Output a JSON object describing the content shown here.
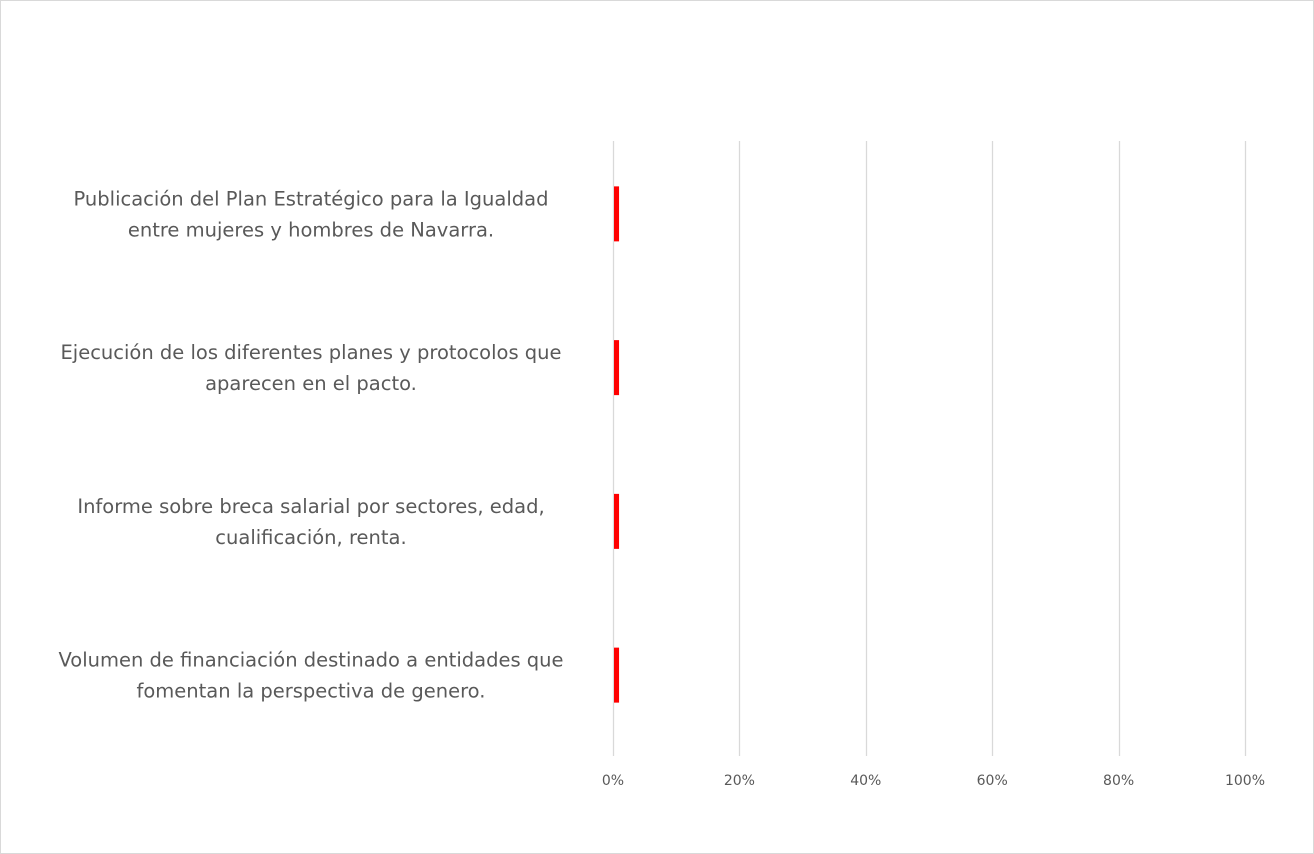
{
  "chart_data": {
    "type": "bar",
    "orientation": "horizontal",
    "categories": [
      [
        "Publicación del Plan Estratégico para la Igualdad",
        "entre mujeres y hombres de Navarra."
      ],
      [
        "Ejecución de los diferentes planes y protocolos que",
        "aparecen en el pacto."
      ],
      [
        "Informe sobre breca salarial por sectores, edad,",
        "cualificación, renta."
      ],
      [
        "Volumen de financiación destinado a entidades que",
        "fomentan la perspectiva de genero."
      ]
    ],
    "values": [
      0.8,
      0.8,
      0.8,
      0.8
    ],
    "xlim": [
      0,
      100
    ],
    "xticks": [
      0,
      20,
      40,
      60,
      80,
      100
    ],
    "tick_labels": [
      "0%",
      "20%",
      "40%",
      "60%",
      "80%",
      "100%"
    ],
    "grid": true,
    "legend": "none",
    "colors": {
      "bar": "#ff0000",
      "grid": "#d9d9d9",
      "text": "#595959",
      "border": "#d9d9d9"
    }
  }
}
